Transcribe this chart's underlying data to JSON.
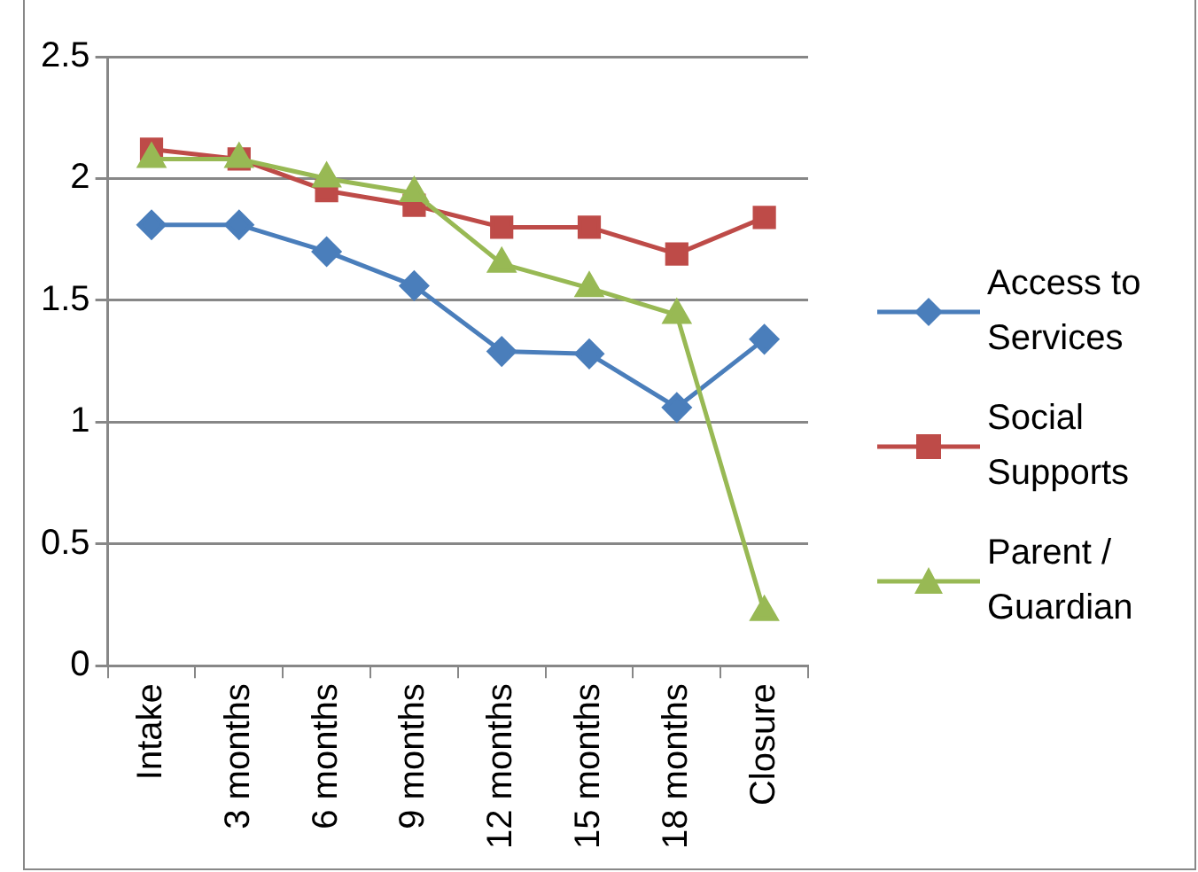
{
  "chart_data": {
    "type": "line",
    "categories": [
      "Intake",
      "3 months",
      "6 months",
      "9 months",
      "12 months",
      "15 months",
      "18 months",
      "Closure"
    ],
    "series": [
      {
        "name": "Access to Services",
        "color": "#4a7ebb",
        "marker": "diamond",
        "values": [
          1.81,
          1.81,
          1.7,
          1.56,
          1.29,
          1.28,
          1.06,
          1.34
        ]
      },
      {
        "name": "Social Supports",
        "color": "#be4b48",
        "marker": "square",
        "values": [
          2.12,
          2.08,
          1.95,
          1.89,
          1.8,
          1.8,
          1.69,
          1.84
        ]
      },
      {
        "name": "Parent / Guardian",
        "color": "#98b954",
        "marker": "triangle",
        "values": [
          2.08,
          2.08,
          2.0,
          1.94,
          1.65,
          1.55,
          1.44,
          0.22
        ]
      }
    ],
    "ylim": [
      0,
      2.5
    ],
    "yticks": [
      0,
      0.5,
      1,
      1.5,
      2,
      2.5
    ],
    "grid": "y",
    "legend": "right",
    "line_style": "solid"
  }
}
